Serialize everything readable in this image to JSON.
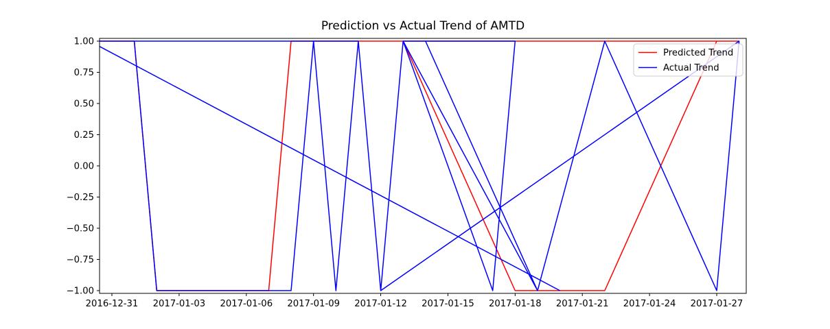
{
  "figure": {
    "kind": "matplotlib-line-plot",
    "background": "#ffffff"
  },
  "chart_data": {
    "type": "line",
    "title": "Prediction vs Actual Trend of AMTD",
    "xlabel": "",
    "ylabel": "",
    "grid": false,
    "ylim": [
      -1.02,
      1.02
    ],
    "xlim_days_from_first_tick": [
      -0.55,
      28.32
    ],
    "y_ticks": [
      1.0,
      0.75,
      0.5,
      0.25,
      0.0,
      -0.25,
      -0.5,
      -0.75,
      -1.0
    ],
    "y_tick_labels": [
      "1.00",
      "0.75",
      "0.50",
      "0.25",
      "0.00",
      "−0.25",
      "−0.50",
      "−0.75",
      "−1.00"
    ],
    "x_tick_labels": [
      "2016-12-31",
      "2017-01-03",
      "2017-01-06",
      "2017-01-09",
      "2017-01-12",
      "2017-01-15",
      "2017-01-18",
      "2017-01-21",
      "2017-01-24",
      "2017-01-27"
    ],
    "value_levels": [
      1,
      -1
    ],
    "legend": {
      "position": "upper right",
      "entries": [
        {
          "label": "Predicted Trend",
          "color": "#ff0000"
        },
        {
          "label": "Actual Trend",
          "color": "#0000ff"
        }
      ]
    },
    "series": [
      {
        "name": "Predicted Trend",
        "color": "#ff0000",
        "points": [
          [
            "2016-12-30",
            1
          ],
          [
            "2017-01-01",
            1
          ],
          [
            "2017-01-02",
            -1
          ],
          [
            "2017-01-07",
            -1
          ],
          [
            "2017-01-08",
            1
          ],
          [
            "2017-01-13",
            1
          ],
          [
            "2017-01-18",
            -1
          ],
          [
            "2017-01-22",
            -1
          ],
          [
            "2017-01-27",
            1
          ],
          [
            "2017-01-13",
            1
          ],
          [
            "2017-01-28",
            1
          ]
        ]
      },
      {
        "name": "Actual Trend",
        "color": "#0000ff",
        "points": [
          [
            "2017-01-20",
            -1
          ],
          [
            "2016-12-30",
            1
          ],
          [
            "2017-01-01",
            1
          ],
          [
            "2017-01-02",
            -1
          ],
          [
            "2017-01-08",
            -1
          ],
          [
            "2017-01-09",
            1
          ],
          [
            "2017-01-01",
            1
          ],
          [
            "2017-01-09",
            1
          ],
          [
            "2017-01-10",
            -1
          ],
          [
            "2017-01-11",
            1
          ],
          [
            "2017-01-09",
            1
          ],
          [
            "2017-01-11",
            1
          ],
          [
            "2017-01-12",
            -1
          ],
          [
            "2017-01-13",
            1
          ],
          [
            "2017-01-17",
            -1
          ],
          [
            "2017-01-18",
            1
          ],
          [
            "2017-01-13",
            1
          ],
          [
            "2017-01-19",
            -1
          ],
          [
            "2017-01-14",
            1
          ],
          [
            "2017-01-19",
            -1
          ],
          [
            "2017-01-22",
            1
          ],
          [
            "2017-01-27",
            -1
          ],
          [
            "2017-01-28",
            1
          ],
          [
            "2017-01-12",
            -1
          ]
        ]
      }
    ]
  }
}
